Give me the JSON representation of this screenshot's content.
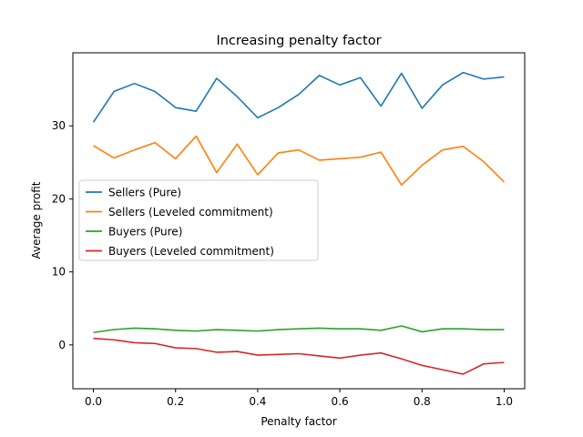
{
  "chart_data": {
    "type": "line",
    "title": "Increasing penalty factor",
    "xlabel": "Penalty factor",
    "ylabel": "Average profit",
    "xlim": [
      -0.05,
      1.05
    ],
    "ylim": [
      -6,
      40
    ],
    "xticks": [
      0.0,
      0.2,
      0.4,
      0.6,
      0.8,
      1.0
    ],
    "xtick_labels": [
      "0.0",
      "0.2",
      "0.4",
      "0.6",
      "0.8",
      "1.0"
    ],
    "yticks": [
      0,
      10,
      20,
      30
    ],
    "ytick_labels": [
      "0",
      "10",
      "20",
      "30"
    ],
    "grid": false,
    "legend_position": "center-left",
    "x": [
      0.0,
      0.05,
      0.1,
      0.15,
      0.2,
      0.25,
      0.3,
      0.35,
      0.4,
      0.45,
      0.5,
      0.55,
      0.6,
      0.65,
      0.7,
      0.75,
      0.8,
      0.85,
      0.9,
      0.95,
      1.0
    ],
    "series": [
      {
        "name": "Sellers (Pure)",
        "color": "#1f77b4",
        "values": [
          30.5,
          34.7,
          35.8,
          34.7,
          32.5,
          32.0,
          36.5,
          34.0,
          31.1,
          32.5,
          34.3,
          36.9,
          35.6,
          36.6,
          32.7,
          37.2,
          32.4,
          35.6,
          37.3,
          36.4,
          36.7
        ]
      },
      {
        "name": "Sellers (Leveled commitment)",
        "color": "#ff7f0e",
        "values": [
          27.3,
          25.6,
          26.7,
          27.7,
          25.5,
          28.6,
          23.6,
          27.5,
          23.3,
          26.3,
          26.7,
          25.3,
          25.5,
          25.7,
          26.4,
          21.9,
          24.6,
          26.7,
          27.2,
          25.1,
          22.3
        ]
      },
      {
        "name": "Buyers (Pure)",
        "color": "#2ca02c",
        "values": [
          1.7,
          2.1,
          2.3,
          2.2,
          2.0,
          1.9,
          2.1,
          2.0,
          1.9,
          2.1,
          2.2,
          2.3,
          2.2,
          2.2,
          2.0,
          2.6,
          1.8,
          2.2,
          2.2,
          2.1,
          2.1
        ]
      },
      {
        "name": "Buyers (Leveled commitment)",
        "color": "#d62728",
        "values": [
          0.9,
          0.7,
          0.3,
          0.2,
          -0.4,
          -0.5,
          -1.0,
          -0.9,
          -1.4,
          -1.3,
          -1.2,
          -1.5,
          -1.8,
          -1.4,
          -1.1,
          -1.9,
          -2.8,
          -3.4,
          -4.0,
          -2.6,
          -2.4
        ]
      }
    ]
  }
}
